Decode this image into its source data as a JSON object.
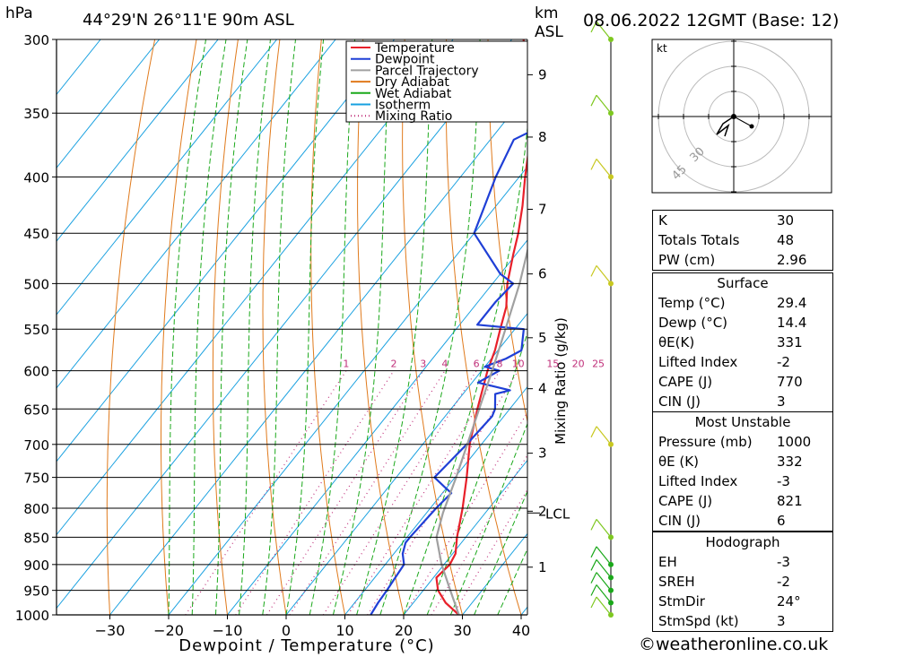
{
  "header": {
    "hpa_label": "hPa",
    "location": "44°29'N 26°11'E 90m ASL",
    "km_label": "km",
    "asl_label": "ASL",
    "datetime": "08.06.2022 12GMT (Base: 12)"
  },
  "legend": {
    "items": [
      {
        "label": "Temperature",
        "color": "#e8202a",
        "style": "solid"
      },
      {
        "label": "Dewpoint",
        "color": "#1f3fd6",
        "style": "solid"
      },
      {
        "label": "Parcel Trajectory",
        "color": "#a0a0a0",
        "style": "solid"
      },
      {
        "label": "Dry Adiabat",
        "color": "#e07a1c",
        "style": "solid"
      },
      {
        "label": "Wet Adiabat",
        "color": "#1aa81a",
        "style": "solid"
      },
      {
        "label": "Isotherm",
        "color": "#17a0e0",
        "style": "solid"
      },
      {
        "label": "Mixing Ratio",
        "color": "#c0307a",
        "style": "dotted"
      }
    ]
  },
  "chart_data": {
    "type": "line",
    "xlabel": "Dewpoint / Temperature (°C)",
    "ylabel": "hPa",
    "right_label": "Mixing Ratio (g/kg)",
    "xlim": [
      -40,
      40
    ],
    "ylim": [
      1000,
      300
    ],
    "pressure_ticks": [
      300,
      350,
      400,
      450,
      500,
      550,
      600,
      650,
      700,
      750,
      800,
      850,
      900,
      950,
      1000
    ],
    "temp_ticks": [
      -30,
      -20,
      -10,
      0,
      10,
      20,
      30,
      40
    ],
    "km_ticks": [
      {
        "label": "1",
        "p": 905
      },
      {
        "label": "2",
        "p": 805
      },
      {
        "label": "3",
        "p": 713
      },
      {
        "label": "4",
        "p": 623
      },
      {
        "label": "5",
        "p": 560
      },
      {
        "label": "6",
        "p": 490
      },
      {
        "label": "7",
        "p": 428
      },
      {
        "label": "8",
        "p": 368
      },
      {
        "label": "9",
        "p": 323
      }
    ],
    "lcl": {
      "label": "LCL",
      "p": 808
    },
    "mixing_ratio_labels": [
      "1",
      "2",
      "3",
      "4",
      "6",
      "8",
      "10",
      "15",
      "20",
      "25"
    ],
    "series": [
      {
        "name": "Temperature",
        "color": "#e8202a",
        "points": [
          [
            1000,
            29.4
          ],
          [
            975,
            25.5
          ],
          [
            950,
            22.5
          ],
          [
            925,
            20.5
          ],
          [
            900,
            21.0
          ],
          [
            880,
            20.5
          ],
          [
            850,
            18.5
          ],
          [
            800,
            15.5
          ],
          [
            750,
            12.0
          ],
          [
            700,
            8.0
          ],
          [
            650,
            4.5
          ],
          [
            600,
            1.0
          ],
          [
            575,
            -0.5
          ],
          [
            550,
            -2.5
          ],
          [
            525,
            -4.5
          ],
          [
            500,
            -7.5
          ],
          [
            470,
            -10.5
          ],
          [
            450,
            -12.5
          ],
          [
            425,
            -15.5
          ],
          [
            400,
            -19.0
          ],
          [
            375,
            -22.5
          ],
          [
            350,
            -27.0
          ],
          [
            325,
            -32.5
          ],
          [
            300,
            -38.0
          ]
        ]
      },
      {
        "name": "Dewpoint",
        "color": "#1f3fd6",
        "points": [
          [
            1000,
            14.4
          ],
          [
            975,
            14.0
          ],
          [
            950,
            13.8
          ],
          [
            925,
            13.5
          ],
          [
            900,
            13.2
          ],
          [
            880,
            11.5
          ],
          [
            860,
            10.5
          ],
          [
            850,
            10.5
          ],
          [
            800,
            11.0
          ],
          [
            775,
            11.5
          ],
          [
            765,
            9.5
          ],
          [
            750,
            6.5
          ],
          [
            700,
            7.5
          ],
          [
            660,
            8.0
          ],
          [
            650,
            7.5
          ],
          [
            630,
            5.5
          ],
          [
            625,
            7.5
          ],
          [
            615,
            1.0
          ],
          [
            600,
            3.0
          ],
          [
            595,
            0.0
          ],
          [
            585,
            2.5
          ],
          [
            575,
            4.0
          ],
          [
            550,
            1.5
          ],
          [
            545,
            -7.0
          ],
          [
            520,
            -7.0
          ],
          [
            500,
            -6.5
          ],
          [
            490,
            -10.0
          ],
          [
            450,
            -20.0
          ],
          [
            400,
            -24.0
          ],
          [
            370,
            -26.0
          ],
          [
            340,
            -17.5
          ],
          [
            310,
            -10.0
          ],
          [
            300,
            -13.5
          ]
        ]
      },
      {
        "name": "Parcel Trajectory",
        "color": "#a0a0a0",
        "points": [
          [
            1000,
            29.4
          ],
          [
            950,
            24.6
          ],
          [
            900,
            19.6
          ],
          [
            850,
            15.0
          ],
          [
            808,
            12.8
          ],
          [
            750,
            10.2
          ],
          [
            700,
            7.6
          ],
          [
            650,
            4.8
          ],
          [
            600,
            1.8
          ],
          [
            550,
            -1.6
          ],
          [
            500,
            -5.4
          ],
          [
            450,
            -10.2
          ],
          [
            400,
            -16.0
          ],
          [
            350,
            -23.5
          ],
          [
            300,
            -33.0
          ]
        ]
      }
    ],
    "wind_barbs": [
      {
        "p": 300,
        "color": "#7ec820"
      },
      {
        "p": 350,
        "color": "#7ec820"
      },
      {
        "p": 400,
        "color": "#c8c820"
      },
      {
        "p": 500,
        "color": "#c8c820"
      },
      {
        "p": 700,
        "color": "#c8c820"
      },
      {
        "p": 850,
        "color": "#7ec820"
      },
      {
        "p": 900,
        "color": "#1aa81a"
      },
      {
        "p": 925,
        "color": "#1aa81a"
      },
      {
        "p": 950,
        "color": "#1aa81a"
      },
      {
        "p": 975,
        "color": "#1aa81a"
      },
      {
        "p": 1000,
        "color": "#7ec820"
      }
    ]
  },
  "hodograph": {
    "unit_label": "kt",
    "ring_labels": [
      "30",
      "45"
    ]
  },
  "indices": {
    "top": [
      {
        "label": "K",
        "value": "30"
      },
      {
        "label": "Totals Totals",
        "value": "48"
      },
      {
        "label": "PW (cm)",
        "value": "2.96"
      }
    ],
    "surface_title": "Surface",
    "surface": [
      {
        "label": "Temp (°C)",
        "value": "29.4"
      },
      {
        "label": "Dewp (°C)",
        "value": "14.4"
      },
      {
        "label": "θE(K)",
        "value": "331"
      },
      {
        "label": "Lifted Index",
        "value": "-2"
      },
      {
        "label": "CAPE (J)",
        "value": "770"
      },
      {
        "label": "CIN (J)",
        "value": "3"
      }
    ],
    "unstable_title": "Most Unstable",
    "unstable": [
      {
        "label": "Pressure (mb)",
        "value": "1000"
      },
      {
        "label": "θE (K)",
        "value": "332"
      },
      {
        "label": "Lifted Index",
        "value": "-3"
      },
      {
        "label": "CAPE (J)",
        "value": "821"
      },
      {
        "label": "CIN (J)",
        "value": "6"
      }
    ],
    "hodo_title": "Hodograph",
    "hodo": [
      {
        "label": "EH",
        "value": "-3"
      },
      {
        "label": "SREH",
        "value": "-2"
      },
      {
        "label": "StmDir",
        "value": "24°"
      },
      {
        "label": "StmSpd (kt)",
        "value": "3"
      }
    ]
  },
  "footer": {
    "copyright": "©weatheronline.co.uk"
  }
}
